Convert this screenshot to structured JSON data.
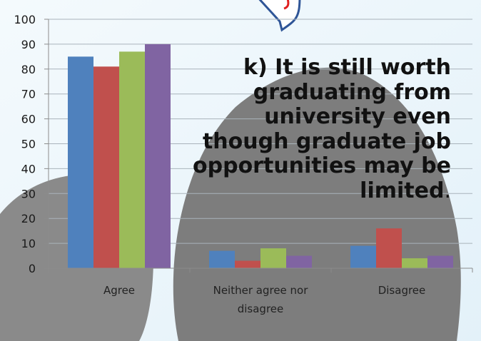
{
  "chart_data": {
    "type": "bar",
    "categories": [
      "Agree",
      "Neither agree nor disagree",
      "Disagree"
    ],
    "category_lines": [
      [
        "Agree"
      ],
      [
        "Neither agree nor",
        "disagree"
      ],
      [
        "Disagree"
      ]
    ],
    "series": [
      {
        "color": "#4f81bd",
        "values": [
          85,
          7,
          9
        ]
      },
      {
        "color": "#c0504d",
        "values": [
          81,
          3,
          16
        ]
      },
      {
        "color": "#9bbb59",
        "values": [
          87,
          8,
          4
        ]
      },
      {
        "color": "#8064a2",
        "values": [
          90,
          5,
          5
        ]
      }
    ],
    "ylim": [
      0,
      100
    ],
    "yticks": [
      0,
      10,
      20,
      30,
      40,
      50,
      60,
      70,
      80,
      90,
      100
    ],
    "grid": true,
    "legend": "none"
  },
  "overlay": {
    "text": "k) It is still worth graduating from university even though graduate job opportunities may be limited",
    "tail": "."
  },
  "colors": {
    "background_wash": "#dceef8",
    "background_shape": "#7a7a7a",
    "callout_outline": "#2f5597",
    "callout_mark": "#e02020"
  }
}
